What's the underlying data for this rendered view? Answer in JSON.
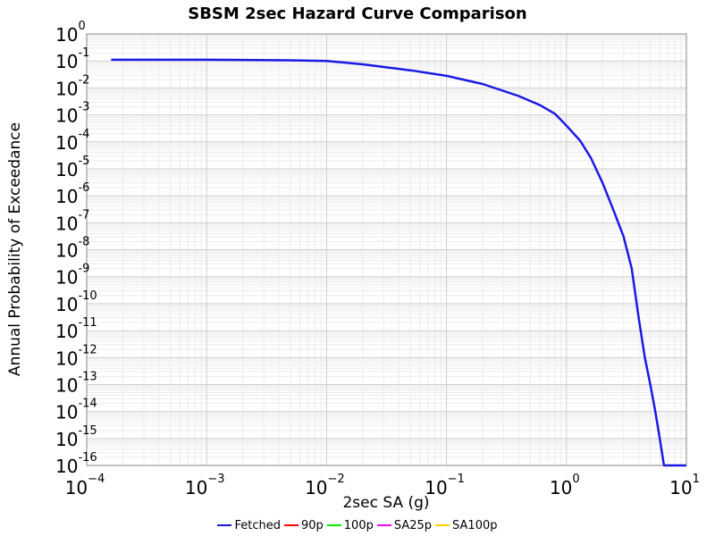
{
  "chart_data": {
    "type": "line",
    "title": "SBSM 2sec Hazard Curve Comparison",
    "xlabel": "2sec SA (g)",
    "ylabel": "Annual Probability of Exceedance",
    "xscale": "log",
    "yscale": "log",
    "xlim": [
      0.0001,
      10
    ],
    "ylim": [
      1e-16,
      1
    ],
    "grid": true,
    "legend_position": "bottom",
    "x_ticks": [
      {
        "base": "10",
        "exp": "−4"
      },
      {
        "base": "10",
        "exp": "−3"
      },
      {
        "base": "10",
        "exp": "−2"
      },
      {
        "base": "10",
        "exp": "−1"
      },
      {
        "base": "10",
        "exp": "0"
      },
      {
        "base": "10",
        "exp": "1"
      }
    ],
    "y_ticks": [
      {
        "base": "10",
        "exp": "0"
      },
      {
        "base": "10",
        "exp": "-1"
      },
      {
        "base": "10",
        "exp": "-2"
      },
      {
        "base": "10",
        "exp": "-3"
      },
      {
        "base": "10",
        "exp": "-4"
      },
      {
        "base": "10",
        "exp": "-5"
      },
      {
        "base": "10",
        "exp": "-6"
      },
      {
        "base": "10",
        "exp": "-7"
      },
      {
        "base": "10",
        "exp": "-8"
      },
      {
        "base": "10",
        "exp": "-9"
      },
      {
        "base": "10",
        "exp": "-10"
      },
      {
        "base": "10",
        "exp": "-11"
      },
      {
        "base": "10",
        "exp": "-12"
      },
      {
        "base": "10",
        "exp": "-13"
      },
      {
        "base": "10",
        "exp": "-14"
      },
      {
        "base": "10",
        "exp": "-15"
      },
      {
        "base": "10",
        "exp": "-16"
      }
    ],
    "series": [
      {
        "name": "Fetched",
        "color": "#1a1ae6",
        "visible": true,
        "x": [
          0.00016,
          0.001,
          0.005,
          0.01,
          0.02,
          0.05,
          0.1,
          0.2,
          0.4,
          0.6,
          0.8,
          1.0,
          1.3,
          1.6,
          2.0,
          2.5,
          3.0,
          3.5,
          4.0,
          4.5,
          5.0,
          5.5,
          6.0,
          6.5,
          10
        ],
        "y": [
          0.11,
          0.11,
          0.105,
          0.1,
          0.075,
          0.045,
          0.028,
          0.014,
          0.005,
          0.0023,
          0.0011,
          0.0004,
          0.00011,
          2.5e-05,
          3e-06,
          2.5e-07,
          3e-08,
          2e-09,
          3e-11,
          1e-12,
          1e-13,
          1e-14,
          1e-15,
          1e-16,
          1e-16
        ]
      },
      {
        "name": "90p",
        "color": "#ff0000",
        "visible": false,
        "x": [],
        "y": []
      },
      {
        "name": "100p",
        "color": "#00ee00",
        "visible": false,
        "x": [],
        "y": []
      },
      {
        "name": "SA25p",
        "color": "#ff00ff",
        "visible": false,
        "x": [],
        "y": []
      },
      {
        "name": "SA100p",
        "color": "#ffcc00",
        "visible": false,
        "x": [],
        "y": []
      }
    ]
  }
}
